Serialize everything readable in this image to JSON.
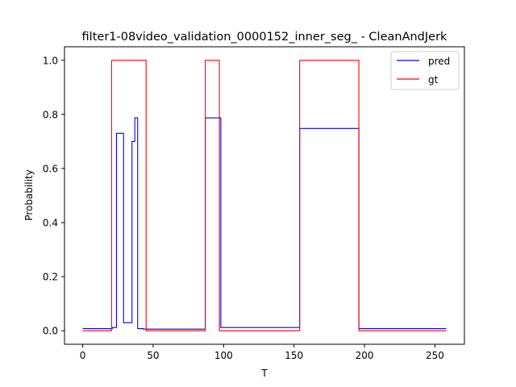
{
  "chart_data": {
    "type": "line",
    "title": "filter1-08video_validation_0000152_inner_seg_ - CleanAndJerk",
    "xlabel": "T",
    "ylabel": "Probability",
    "xlim": [
      -12.9,
      270.9
    ],
    "ylim": [
      -0.05,
      1.05
    ],
    "xticks": [
      0,
      50,
      100,
      150,
      200,
      250
    ],
    "yticks": [
      0.0,
      0.2,
      0.4,
      0.6,
      0.8,
      1.0
    ],
    "xtick_labels": [
      "0",
      "50",
      "100",
      "150",
      "200",
      "250"
    ],
    "ytick_labels": [
      "0.0",
      "0.2",
      "0.4",
      "0.6",
      "0.8",
      "1.0"
    ],
    "grid": false,
    "legend_position": "top-right",
    "series": [
      {
        "name": "pred",
        "color": "#0000ff",
        "x": [
          0,
          21,
          21,
          24,
          24,
          29,
          29,
          35,
          35,
          37,
          37,
          39,
          39,
          43,
          43,
          87,
          87,
          98,
          98,
          154,
          154,
          196,
          196,
          258
        ],
        "y": [
          0.008,
          0.008,
          0.012,
          0.012,
          0.73,
          0.73,
          0.03,
          0.03,
          0.7,
          0.7,
          0.787,
          0.787,
          0.008,
          0.008,
          0.006,
          0.006,
          0.787,
          0.787,
          0.012,
          0.012,
          0.748,
          0.748,
          0.008,
          0.008
        ]
      },
      {
        "name": "gt",
        "color": "#ff0000",
        "x": [
          0,
          20.5,
          20.5,
          45,
          45,
          87,
          87,
          97,
          97,
          154,
          154,
          196,
          196,
          258
        ],
        "y": [
          0,
          0,
          1,
          1,
          0,
          0,
          1,
          1,
          0,
          0,
          1,
          1,
          0,
          0
        ]
      }
    ]
  }
}
